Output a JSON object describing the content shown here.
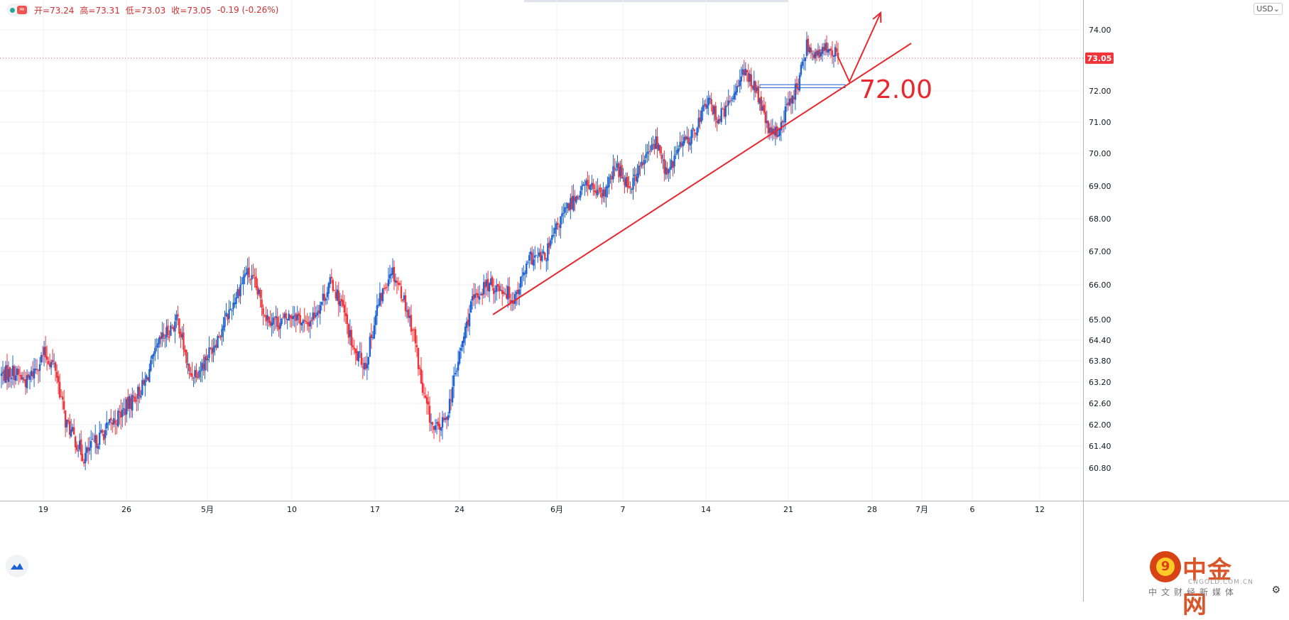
{
  "ohlc": {
    "open": "开=73.24",
    "high": "高=73.31",
    "low": "低=73.03",
    "close": "收=73.05",
    "change": "-0.19 (-0.26%)"
  },
  "wave_icon": "≈",
  "currency": "USD",
  "price_marker": "73.05",
  "annotation_label": "72.00",
  "icons": {
    "tv_logo": "cloud-wave-icon",
    "settings": "gear-icon"
  },
  "watermark": {
    "badge": "9",
    "title": "中金网",
    "domain": "CNGOLD.COM.CN",
    "subtitle": "中文财经新媒体"
  },
  "colors": {
    "up": "#1e63d1",
    "down": "#f0353a",
    "annotation": "#e8272e",
    "price_line": "#ef5350",
    "support_box": "#1e63d1"
  },
  "chart_data": {
    "type": "candlestick",
    "ylim": [
      60.4,
      74.75
    ],
    "yticks": [
      "74.00",
      "73.00",
      "72.00",
      "71.00",
      "70.00",
      "69.00",
      "68.00",
      "67.00",
      "66.00",
      "65.00",
      "64.40",
      "63.80",
      "63.20",
      "62.60",
      "62.00",
      "61.40",
      "60.80"
    ],
    "xticks": [
      "19",
      "26",
      "5月",
      "10",
      "17",
      "24",
      "6月",
      "7",
      "14",
      "21",
      "28",
      "7月",
      "6",
      "12"
    ],
    "grid": true,
    "last_price": 73.05,
    "anchors": [
      [
        0,
        63.4
      ],
      [
        8,
        63.5
      ],
      [
        18,
        63.2
      ],
      [
        30,
        64.0
      ],
      [
        38,
        63.6
      ],
      [
        45,
        62.1
      ],
      [
        58,
        61.1
      ],
      [
        70,
        61.7
      ],
      [
        86,
        62.4
      ],
      [
        100,
        63.1
      ],
      [
        112,
        64.4
      ],
      [
        124,
        65.0
      ],
      [
        132,
        63.4
      ],
      [
        140,
        63.6
      ],
      [
        152,
        64.5
      ],
      [
        162,
        65.4
      ],
      [
        172,
        66.4
      ],
      [
        178,
        66.0
      ],
      [
        186,
        65.1
      ],
      [
        196,
        64.9
      ],
      [
        206,
        65.2
      ],
      [
        214,
        64.8
      ],
      [
        222,
        65.3
      ],
      [
        232,
        66.1
      ],
      [
        240,
        65.3
      ],
      [
        248,
        64.0
      ],
      [
        256,
        63.7
      ],
      [
        264,
        65.3
      ],
      [
        274,
        66.5
      ],
      [
        282,
        65.7
      ],
      [
        290,
        64.6
      ],
      [
        296,
        62.9
      ],
      [
        304,
        61.8
      ],
      [
        312,
        62.1
      ],
      [
        320,
        63.6
      ],
      [
        330,
        65.4
      ],
      [
        340,
        66.0
      ],
      [
        352,
        65.9
      ],
      [
        360,
        65.6
      ],
      [
        372,
        66.8
      ],
      [
        382,
        66.8
      ],
      [
        392,
        67.9
      ],
      [
        402,
        68.6
      ],
      [
        412,
        69.1
      ],
      [
        422,
        68.6
      ],
      [
        432,
        69.6
      ],
      [
        442,
        69.0
      ],
      [
        452,
        69.8
      ],
      [
        460,
        70.4
      ],
      [
        468,
        69.3
      ],
      [
        476,
        70.2
      ],
      [
        486,
        70.6
      ],
      [
        496,
        71.7
      ],
      [
        504,
        71.1
      ],
      [
        512,
        71.6
      ],
      [
        520,
        72.6
      ],
      [
        528,
        72.3
      ],
      [
        534,
        71.5
      ],
      [
        540,
        70.6
      ],
      [
        546,
        70.7
      ],
      [
        554,
        71.7
      ],
      [
        560,
        72.2
      ],
      [
        566,
        73.5
      ],
      [
        574,
        73.1
      ],
      [
        582,
        73.5
      ],
      [
        588,
        73.05
      ]
    ],
    "trend_line": [
      [
        694,
        443
      ],
      [
        1283,
        61
      ]
    ],
    "support_box": {
      "price_top": 72.2,
      "price_bottom": 72.1,
      "x_from": 1070,
      "x_to": 1190
    },
    "forecast_path": [
      [
        1180,
        80
      ],
      [
        1196,
        115
      ],
      [
        1240,
        18
      ]
    ]
  }
}
